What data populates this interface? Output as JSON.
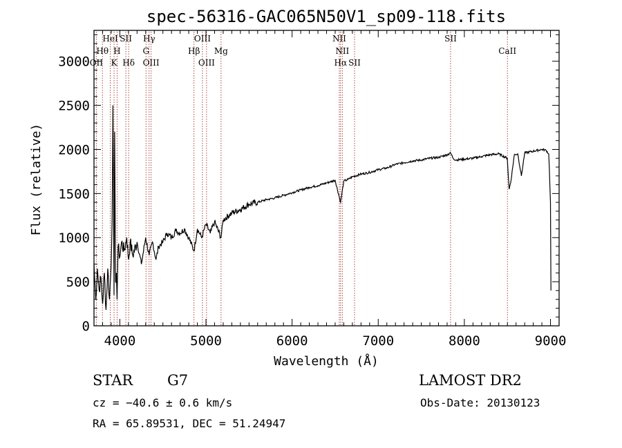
{
  "chart_data": {
    "type": "line",
    "title": "spec-56316-GAC065N50V1_sp09-118.fits",
    "xlabel": "Wavelength (Å)",
    "ylabel": "Flux (relative)",
    "xlim": [
      3700,
      9100
    ],
    "ylim": [
      0,
      3350
    ],
    "xticks": [
      4000,
      5000,
      6000,
      7000,
      8000,
      9000
    ],
    "yticks": [
      0,
      500,
      1000,
      1500,
      2000,
      2500,
      3000
    ],
    "grid": false,
    "series": [
      {
        "x": [
          3700,
          3720,
          3740,
          3760,
          3780,
          3800,
          3820,
          3840,
          3860,
          3880,
          3900,
          3910,
          3920,
          3933,
          3940,
          3950,
          3960,
          3968,
          3980,
          4000,
          4020,
          4050,
          4080,
          4102,
          4120,
          4150,
          4200,
          4250,
          4300,
          4340,
          4380,
          4420,
          4450,
          4500,
          4550,
          4600,
          4650,
          4700,
          4750,
          4800,
          4861,
          4900,
          4950,
          5000,
          5050,
          5100,
          5175,
          5200,
          5300,
          5400,
          5500,
          5600,
          5700,
          5800,
          5900,
          6000,
          6100,
          6200,
          6300,
          6400,
          6500,
          6563,
          6600,
          6650,
          6700,
          6800,
          6900,
          7000,
          7100,
          7200,
          7300,
          7400,
          7500,
          7600,
          7700,
          7800,
          7840,
          7870,
          7900,
          8000,
          8100,
          8200,
          8300,
          8400,
          8498,
          8520,
          8542,
          8580,
          8620,
          8662,
          8700,
          8800,
          8900,
          8950,
          8980,
          9000,
          9005
        ],
        "y": [
          700,
          300,
          650,
          400,
          550,
          250,
          600,
          180,
          650,
          300,
          700,
          1200,
          2500,
          350,
          2200,
          500,
          600,
          300,
          900,
          780,
          950,
          850,
          1000,
          750,
          950,
          800,
          950,
          700,
          1000,
          800,
          950,
          750,
          900,
          950,
          1050,
          1000,
          1080,
          1050,
          1100,
          1000,
          850,
          1100,
          1000,
          1150,
          1050,
          1180,
          1000,
          1200,
          1280,
          1320,
          1380,
          1400,
          1430,
          1450,
          1480,
          1510,
          1540,
          1570,
          1590,
          1620,
          1650,
          1400,
          1640,
          1660,
          1690,
          1720,
          1740,
          1770,
          1790,
          1830,
          1850,
          1870,
          1880,
          1900,
          1910,
          1940,
          1960,
          1900,
          1880,
          1890,
          1900,
          1920,
          1940,
          1950,
          1900,
          1550,
          1650,
          1940,
          1950,
          1700,
          1960,
          1980,
          2000,
          1990,
          1950,
          1400,
          400
        ]
      }
    ],
    "lines": [
      {
        "label": "Hθ",
        "wave": 3798,
        "row": 2
      },
      {
        "label": "OII",
        "wave": 3727,
        "row": 3
      },
      {
        "label": "HeI",
        "wave": 3889,
        "row": 1
      },
      {
        "label": "H",
        "wave": 3968,
        "row": 2
      },
      {
        "label": "K",
        "wave": 3933,
        "row": 3
      },
      {
        "label": "SII",
        "wave": 4070,
        "row": 1
      },
      {
        "label": "Hδ",
        "wave": 4102,
        "row": 3
      },
      {
        "label": "Hγ",
        "wave": 4340,
        "row": 1
      },
      {
        "label": "G",
        "wave": 4304,
        "row": 2
      },
      {
        "label": "OIII",
        "wave": 4363,
        "row": 3
      },
      {
        "label": "OIII",
        "wave": 4959,
        "row": 1
      },
      {
        "label": "Hβ",
        "wave": 4861,
        "row": 2
      },
      {
        "label": "OIII",
        "wave": 5007,
        "row": 3
      },
      {
        "label": "Mg",
        "wave": 5175,
        "row": 2
      },
      {
        "label": "NII",
        "wave": 6548,
        "row": 1
      },
      {
        "label": "NII",
        "wave": 6583,
        "row": 2
      },
      {
        "label": "Hα",
        "wave": 6563,
        "row": 3
      },
      {
        "label": "SII",
        "wave": 6725,
        "row": 3
      },
      {
        "label": "SII",
        "wave": 7840,
        "row": 1
      },
      {
        "label": "CaII",
        "wave": 8500,
        "row": 2
      }
    ]
  },
  "info": {
    "object_class": "STAR",
    "subclass": "G7",
    "survey": "LAMOST DR2",
    "cz": "cz = −40.6 ± 0.6 km/s",
    "obs_date": "Obs-Date: 20130123",
    "coords": "RA =  65.89531, DEC =  51.24947"
  }
}
